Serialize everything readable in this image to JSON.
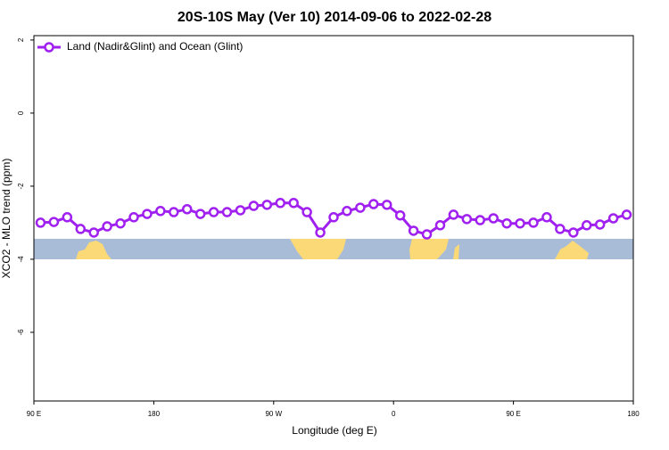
{
  "chart_data": {
    "type": "line",
    "title": "20S-10S May (Ver 10)   2014-09-06 to 2022-02-28",
    "x_label": "Longitude (deg E)",
    "y_label": "XCO2 - MLO trend (ppm)",
    "x": [
      95,
      105,
      115,
      125,
      135,
      145,
      155,
      165,
      175,
      185,
      195,
      205,
      215,
      225,
      235,
      245,
      255,
      265,
      275,
      285,
      295,
      305,
      315,
      325,
      335,
      345,
      355,
      365,
      375,
      385,
      395,
      405,
      415,
      425,
      435,
      445,
      455,
      465,
      475,
      485,
      495,
      505,
      515,
      525,
      535
    ],
    "series": [
      {
        "name": "Land (Nadir&Glint) and Ocean (Glint)",
        "color": "#a020f0",
        "values": [
          -3.0,
          -2.98,
          -2.85,
          -3.17,
          -3.27,
          -3.1,
          -3.02,
          -2.85,
          -2.76,
          -2.68,
          -2.71,
          -2.63,
          -2.76,
          -2.71,
          -2.71,
          -2.66,
          -2.54,
          -2.51,
          -2.46,
          -2.46,
          -2.71,
          -3.27,
          -2.85,
          -2.68,
          -2.59,
          -2.49,
          -2.51,
          -2.8,
          -3.22,
          -3.32,
          -3.07,
          -2.78,
          -2.9,
          -2.93,
          -2.88,
          -3.02,
          -3.02,
          -3.0,
          -2.85,
          -3.17,
          -3.27,
          -3.07,
          -3.05,
          -2.88,
          -2.78
        ]
      }
    ],
    "xlim": [
      90,
      540
    ],
    "xticks": [
      {
        "value": 90,
        "label": "90 E"
      },
      180,
      {
        "value": 270,
        "label": "90 W"
      },
      {
        "value": 360,
        "label": "0"
      },
      {
        "value": 450,
        "label": "90 E"
      },
      {
        "value": 540,
        "label": "180"
      }
    ],
    "ylim": [
      -7.88,
      2.12
    ],
    "yticks": [
      2,
      0,
      -2,
      -4,
      -6
    ],
    "legend": "top-left"
  }
}
